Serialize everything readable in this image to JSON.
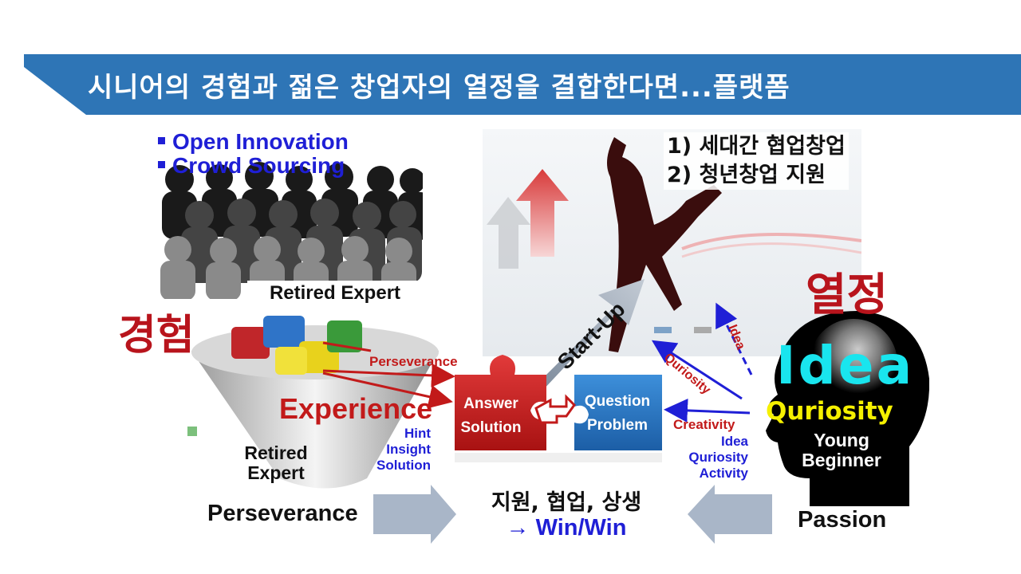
{
  "title": "시니어의 경험과 젊은 창업자의 열정을 결합한다면...플랫폼",
  "colors": {
    "banner": "#2e75b6",
    "red": "#c21a1a",
    "blue": "#1f1fd6",
    "cyan": "#19e5ee",
    "yellow": "#f5f000"
  },
  "crowd": {
    "bullets": [
      "Open Innovation",
      "Crowd Sourcing"
    ],
    "caption": "Retired Expert"
  },
  "experience": {
    "korean": "경험",
    "label": "Experience",
    "list": [
      "Hint",
      "Insight",
      "Solution"
    ],
    "retired": [
      "Retired",
      "Expert"
    ],
    "arrow_label": "Perseverance"
  },
  "startup": {
    "goals": [
      "1) 세대간 협업창업",
      "2) 청년창업 지원"
    ],
    "arrow_text": "Start-Up"
  },
  "puzzle": {
    "answer": [
      "Answer",
      "Solution"
    ],
    "question": [
      "Question",
      "Problem"
    ]
  },
  "passion": {
    "korean": "열정",
    "head_big": "Idea",
    "head_mid": "Quriosity",
    "head_small": [
      "Young",
      "Beginner"
    ],
    "arrow_creativity": "Creativity",
    "list": [
      "Idea",
      "Quriosity",
      "Activity"
    ],
    "arrow_quriosity": "Quriosity",
    "arrow_idea": "Idea"
  },
  "bottom": {
    "left": "Perseverance",
    "right": "Passion",
    "center": "지원, 협업, 상생",
    "result": "→ Win/Win"
  }
}
